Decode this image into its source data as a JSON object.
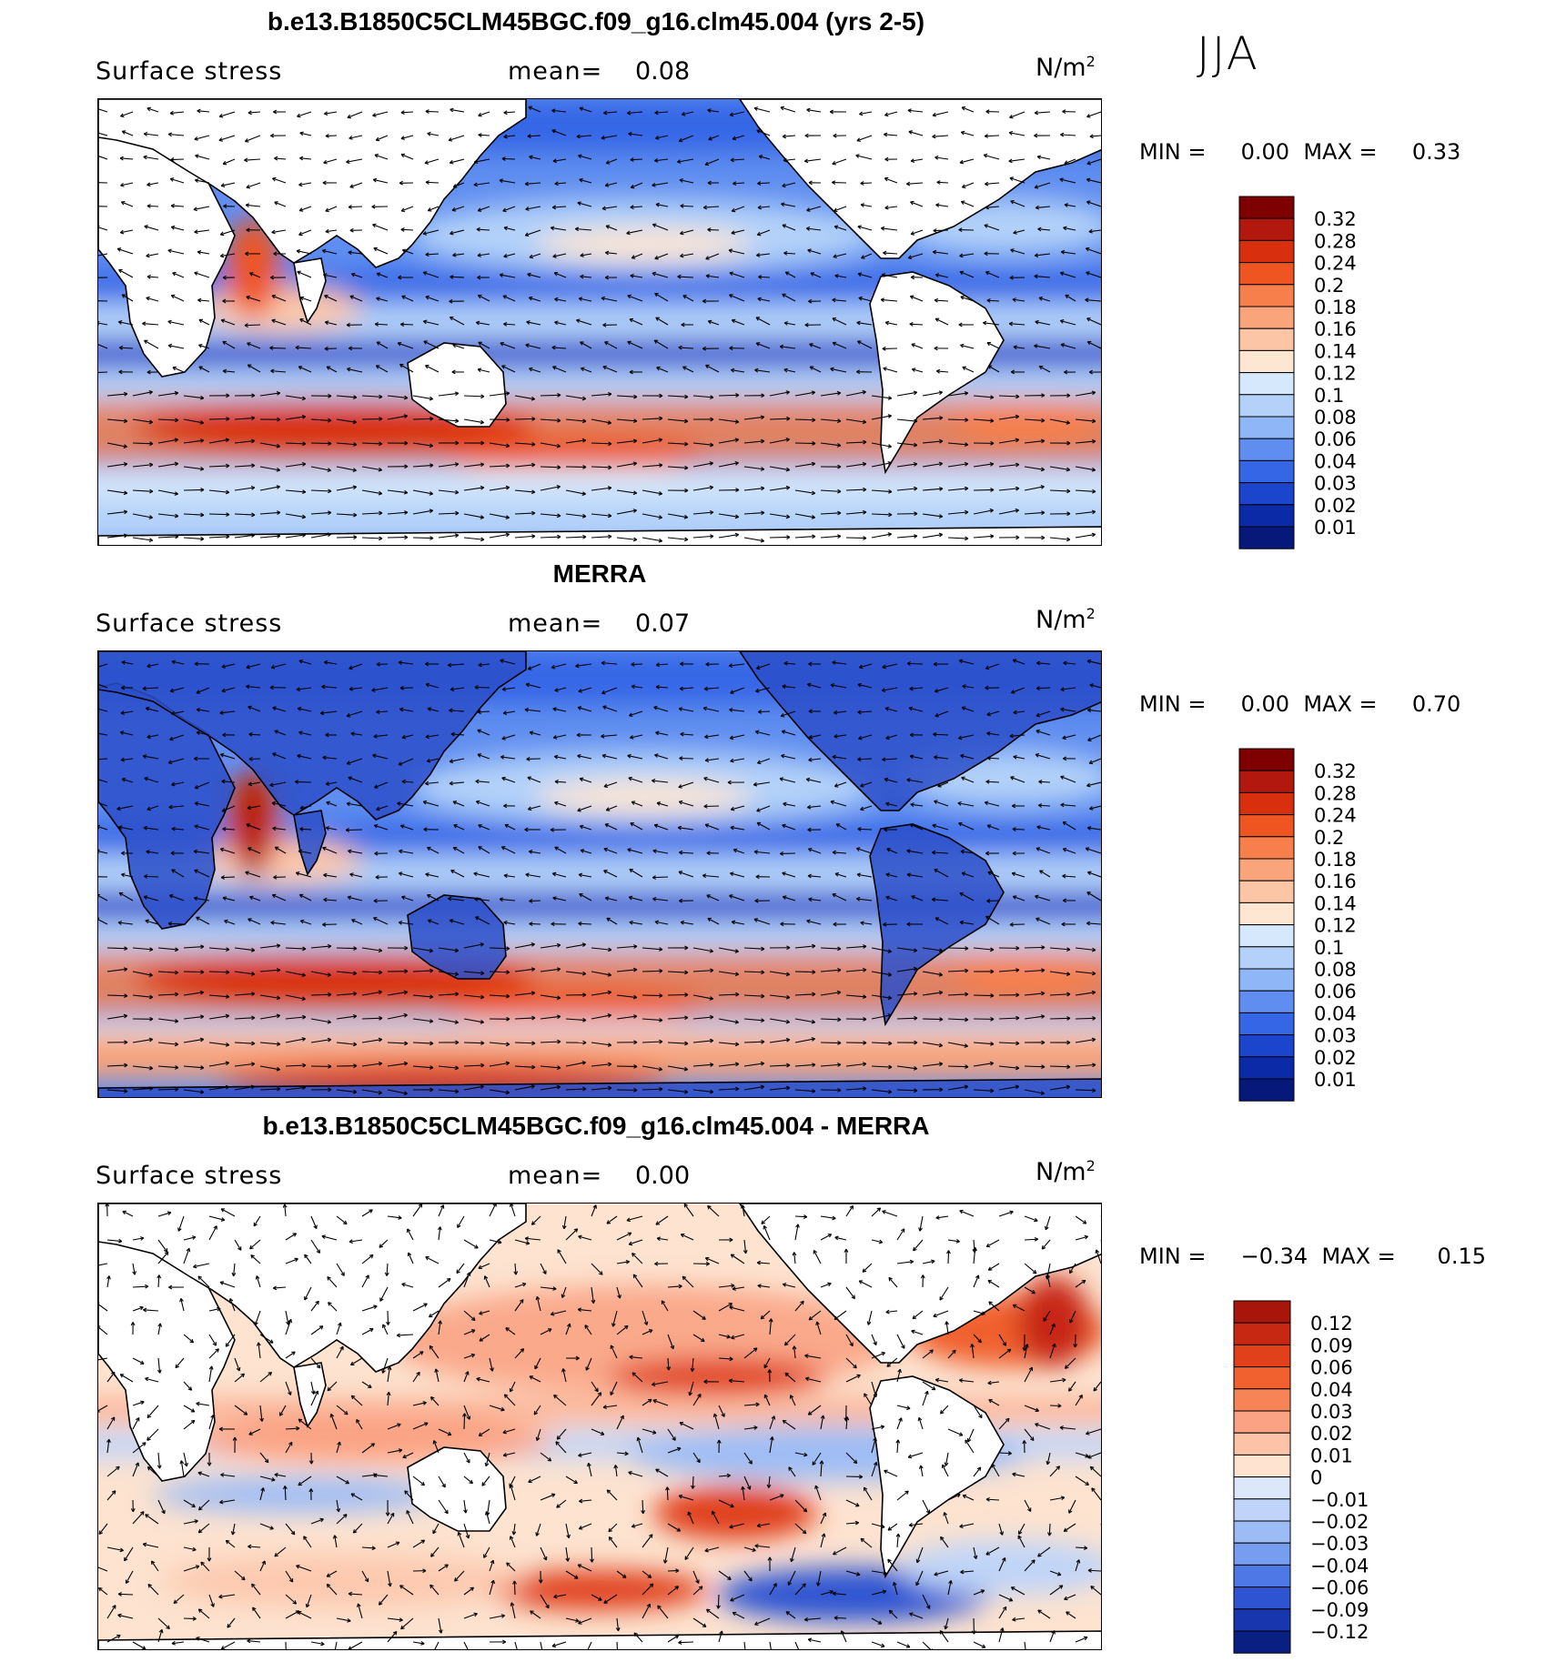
{
  "season": "JJA",
  "panels": [
    {
      "title": "b.e13.B1850C5CLM45BGC.f09_g16.clm45.004 (yrs 2-5)",
      "variable": "Surface stress",
      "mean_label": "mean=",
      "mean_value": "0.08",
      "units_base": "N/m",
      "units_exp": "2",
      "min_label": "MIN =",
      "min_value": "0.00",
      "max_label": "MAX =",
      "max_value": "0.33",
      "colorbar": {
        "levels": [
          "0.32",
          "0.28",
          "0.24",
          "0.2",
          "0.18",
          "0.16",
          "0.14",
          "0.12",
          "0.1",
          "0.08",
          "0.06",
          "0.04",
          "0.03",
          "0.02",
          "0.01"
        ],
        "colors": [
          "#7f0000",
          "#b2180e",
          "#d8300f",
          "#ef5520",
          "#f67f4b",
          "#f9a47a",
          "#fcc6a6",
          "#fde6d2",
          "#d6e8fb",
          "#b3d1f9",
          "#8fb6f6",
          "#5f8ef0",
          "#3566e6",
          "#1a45cc",
          "#0b2aa8",
          "#06197a"
        ]
      }
    },
    {
      "title": "MERRA",
      "variable": "Surface stress",
      "mean_label": "mean=",
      "mean_value": "0.07",
      "units_base": "N/m",
      "units_exp": "2",
      "min_label": "MIN =",
      "min_value": "0.00",
      "max_label": "MAX =",
      "max_value": "0.70",
      "colorbar": {
        "levels": [
          "0.32",
          "0.28",
          "0.24",
          "0.2",
          "0.18",
          "0.16",
          "0.14",
          "0.12",
          "0.1",
          "0.08",
          "0.06",
          "0.04",
          "0.03",
          "0.02",
          "0.01"
        ],
        "colors": [
          "#7f0000",
          "#b2180e",
          "#d8300f",
          "#ef5520",
          "#f67f4b",
          "#f9a47a",
          "#fcc6a6",
          "#fde6d2",
          "#d6e8fb",
          "#b3d1f9",
          "#8fb6f6",
          "#5f8ef0",
          "#3566e6",
          "#1a45cc",
          "#0b2aa8",
          "#06197a"
        ]
      }
    },
    {
      "title": "b.e13.B1850C5CLM45BGC.f09_g16.clm45.004 - MERRA",
      "variable": "Surface stress",
      "mean_label": "mean=",
      "mean_value": "0.00",
      "units_base": "N/m",
      "units_exp": "2",
      "min_label": "MIN =",
      "min_value": "−0.34",
      "max_label": "MAX =",
      "max_value": "0.15",
      "colorbar": {
        "levels": [
          "0.12",
          "0.09",
          "0.06",
          "0.04",
          "0.03",
          "0.02",
          "0.01",
          "0",
          "−0.01",
          "−0.02",
          "−0.03",
          "−0.04",
          "−0.06",
          "−0.09",
          "−0.12"
        ],
        "colors": [
          "#a8150b",
          "#c72812",
          "#e0411b",
          "#f0612f",
          "#f78457",
          "#faa283",
          "#fcc3a8",
          "#fde3d0",
          "#dce8fa",
          "#bfd4f8",
          "#9dbcf5",
          "#779df0",
          "#4e78e6",
          "#2f54d2",
          "#1836ae",
          "#0a1f82"
        ]
      }
    }
  ],
  "chart_data": [
    {
      "type": "heatmap",
      "title": "b.e13.B1850C5CLM45BGC.f09_g16.clm45.004 (yrs 2-5)",
      "variable": "Surface stress",
      "units": "N/m2",
      "mean": 0.08,
      "min": 0.0,
      "max": 0.33,
      "color_levels": [
        0.32,
        0.28,
        0.24,
        0.2,
        0.18,
        0.16,
        0.14,
        0.12,
        0.1,
        0.08,
        0.06,
        0.04,
        0.03,
        0.02,
        0.01
      ],
      "overlay": "wind-stress vectors"
    },
    {
      "type": "heatmap",
      "title": "MERRA",
      "variable": "Surface stress",
      "units": "N/m2",
      "mean": 0.07,
      "min": 0.0,
      "max": 0.7,
      "color_levels": [
        0.32,
        0.28,
        0.24,
        0.2,
        0.18,
        0.16,
        0.14,
        0.12,
        0.1,
        0.08,
        0.06,
        0.04,
        0.03,
        0.02,
        0.01
      ],
      "overlay": "wind-stress vectors"
    },
    {
      "type": "heatmap",
      "title": "b.e13.B1850C5CLM45BGC.f09_g16.clm45.004 - MERRA",
      "variable": "Surface stress",
      "units": "N/m2",
      "mean": 0.0,
      "min": -0.34,
      "max": 0.15,
      "color_levels": [
        0.12,
        0.09,
        0.06,
        0.04,
        0.03,
        0.02,
        0.01,
        0,
        -0.01,
        -0.02,
        -0.03,
        -0.04,
        -0.06,
        -0.09,
        -0.12
      ],
      "overlay": "wind-stress difference vectors"
    }
  ]
}
